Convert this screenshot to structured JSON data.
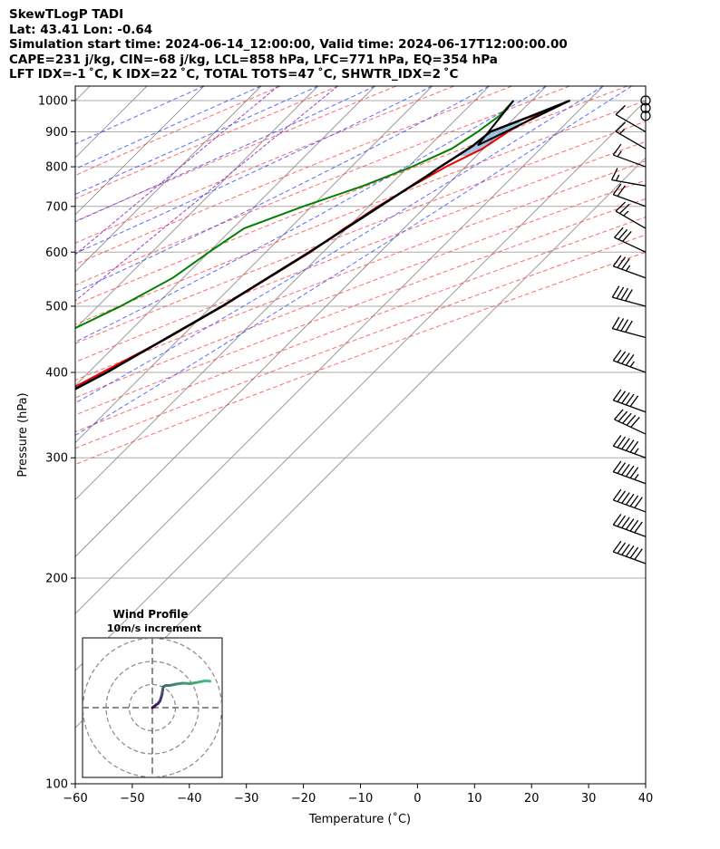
{
  "header": {
    "line1": "SkewTLogP TADI",
    "line2": "Lat: 43.41   Lon: -0.64",
    "line3": "Simulation start time: 2024-06-14_12:00:00, Valid time: 2024-06-17T12:00:00.00",
    "line4": "CAPE=231 j/kg, CIN=-68 j/kg, LCL=858 hPa, LFC=771 hPa, EQ=354 hPa",
    "line5": "LFT IDX=-1 ˚C, K IDX=22 ˚C, TOTAL TOTS=47 ˚C, SHWTR_IDX=2 ˚C"
  },
  "colors": {
    "temperature": "#ee0000",
    "dewpoint": "#008000",
    "parcel": "#000000",
    "cape_fill": "#7aaed6",
    "cin_fill": "#ee6666",
    "dry_adiabat": "#ff4444",
    "moist_adiabat": "#3344ff",
    "mixing_ratio": "#8822bb",
    "isotherm": "#999999",
    "isobar": "#aaaaaa"
  },
  "chart_data": {
    "type": "line",
    "title": "SkewTLogP TADI",
    "xlabel": "Temperature (˚C)",
    "ylabel": "Pressure (hPa)",
    "xlim": [
      -60,
      40
    ],
    "ylim": [
      1050,
      100
    ],
    "x_ticks": [
      "−60",
      "−50",
      "−40",
      "−30",
      "−20",
      "−10",
      "0",
      "10",
      "20",
      "30",
      "40"
    ],
    "x_tick_values": [
      -60,
      -50,
      -40,
      -30,
      -20,
      -10,
      0,
      10,
      20,
      30,
      40
    ],
    "p_ticks": [
      1000,
      900,
      800,
      700,
      600,
      500,
      400,
      300,
      200,
      100
    ],
    "p_tick_labels": [
      "1000",
      "900",
      "800",
      "700",
      "600",
      "500",
      "400",
      "300",
      "200",
      "100"
    ],
    "series": [
      {
        "name": "Temperature",
        "p": [
          1000,
          950,
          900,
          850,
          800,
          750,
          700,
          650,
          600,
          550,
          500,
          450,
          400,
          350,
          300,
          270,
          250,
          230,
          210,
          200,
          190,
          180,
          170,
          160,
          150,
          140,
          130,
          120,
          110,
          100
        ],
        "t": [
          26.7,
          23.5,
          21.3,
          19.8,
          16.6,
          14.0,
          11.6,
          9.6,
          7.8,
          5.0,
          1.9,
          -2.1,
          -7.6,
          -13.8,
          -21.7,
          -27.0,
          -31.2,
          -34.3,
          -38.4,
          -40.2,
          -42.6,
          -43.0,
          -44.8,
          -47.6,
          -50.0,
          -53.2,
          -57.4,
          -59.7,
          -60.7,
          -61.4
        ]
      },
      {
        "name": "Dewpoint",
        "p": [
          1000,
          950,
          900,
          850,
          800,
          750,
          700,
          650,
          600,
          550,
          500,
          450,
          400,
          370,
          350,
          330,
          300,
          280,
          260,
          240,
          220,
          200,
          185,
          170,
          155,
          140,
          128,
          120,
          110,
          100
        ],
        "d": [
          16.8,
          17.0,
          16.0,
          14.4,
          10.6,
          5.4,
          -1.5,
          -8.0,
          -10.0,
          -11.8,
          -16.0,
          -21.9,
          -26.7,
          -28.5,
          -28.2,
          -33.1,
          -38.2,
          -42.6,
          -46.2,
          -51.0,
          -55.0,
          -58.3,
          -59.0,
          -61.0,
          -62.0,
          -62.5,
          -62.5,
          -61.5,
          -60.0,
          -57.0
        ]
      },
      {
        "name": "Parcel",
        "p": [
          1000,
          950,
          900,
          858,
          800,
          771,
          700,
          600,
          500,
          400,
          354,
          300,
          250,
          200,
          150,
          120,
          100
        ],
        "t": [
          26.7,
          22.7,
          18.2,
          17.6,
          15.6,
          14.7,
          11.9,
          7.6,
          1.8,
          -6.8,
          -12.5,
          -20.6,
          -30.3,
          -43.8,
          -60.0,
          -72.0,
          -81.3
        ]
      }
    ],
    "shading": {
      "cape": "CAPE=231 j/kg",
      "cin": "CIN=-68 j/kg"
    },
    "lcl_hpa": 858,
    "lfc_hpa": 771,
    "eq_hpa": 354,
    "dry_adiabats_theta_c": [
      -30,
      -20,
      -10,
      0,
      10,
      20,
      30,
      40,
      50,
      60,
      70,
      80,
      90,
      100,
      110,
      120
    ],
    "moist_adiabats_start_c": [
      -40,
      -30,
      -20,
      -10,
      0,
      10,
      20,
      30,
      35
    ],
    "mixing_ratio_gkg": [
      0.4,
      1.0
    ],
    "wind_barbs": {
      "p": [
        1000,
        975,
        950,
        900,
        850,
        800,
        750,
        700,
        650,
        600,
        550,
        500,
        450,
        400,
        350,
        325,
        300,
        275,
        250,
        230,
        210
      ],
      "speed_kt": [
        0,
        0,
        0,
        10,
        15,
        15,
        15,
        20,
        25,
        30,
        35,
        40,
        40,
        45,
        50,
        50,
        55,
        55,
        60,
        60,
        60
      ],
      "direction_deg": [
        0,
        0,
        0,
        300,
        300,
        290,
        280,
        290,
        300,
        295,
        290,
        285,
        285,
        290,
        290,
        295,
        290,
        290,
        290,
        290,
        290
      ]
    },
    "hodograph": {
      "title": "Wind Profile",
      "subtitle": "10m/s increment",
      "u": [
        0,
        0.7,
        1.6,
        2.5,
        3.3,
        3.8,
        4.2,
        4.4,
        4.7,
        5.8,
        7.6,
        10.3,
        13.3,
        16.6,
        19.8,
        22.8,
        24.9
      ],
      "v": [
        0,
        0.4,
        1.2,
        1.8,
        2.9,
        4.4,
        5.8,
        7.2,
        9.0,
        9.6,
        9.6,
        10.2,
        10.6,
        10.4,
        11.0,
        11.6,
        11.4
      ]
    }
  }
}
